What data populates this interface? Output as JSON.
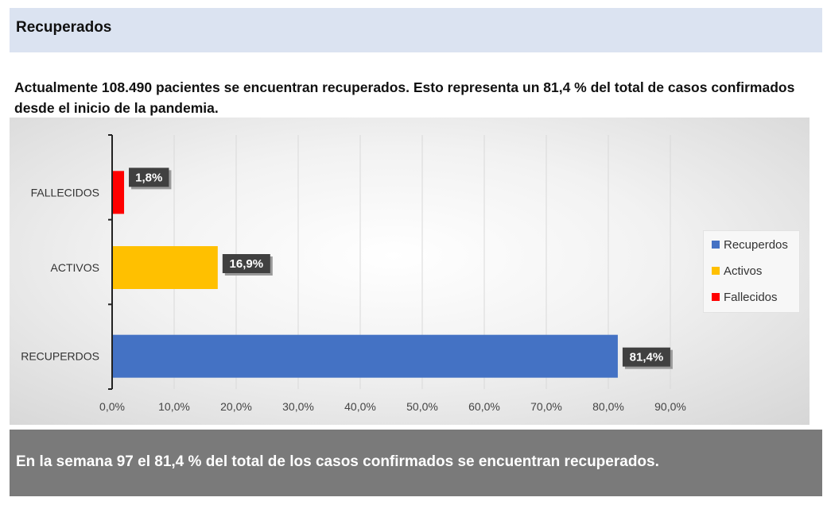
{
  "header": {
    "title": "Recuperados"
  },
  "intro": {
    "text": "Actualmente 108.490 pacientes se encuentran recuperados. Esto representa un 81,4 % del total de casos confirmados desde el inicio de la pandemia."
  },
  "footer": {
    "text": "En la semana 97  el 81,4 % del total de los casos confirmados se encuentran recuperados."
  },
  "chart_data": {
    "type": "bar",
    "orientation": "horizontal",
    "categories": [
      "FALLECIDOS",
      "ACTIVOS",
      "RECUPERDOS"
    ],
    "values": [
      1.8,
      16.9,
      81.4
    ],
    "value_labels": [
      "1,8%",
      "16,9%",
      "81,4%"
    ],
    "colors": [
      "#ff0000",
      "#ffc000",
      "#4472c4"
    ],
    "xlim": [
      0,
      90
    ],
    "x_ticks": [
      "0,0%",
      "10,0%",
      "20,0%",
      "30,0%",
      "40,0%",
      "50,0%",
      "60,0%",
      "70,0%",
      "80,0%",
      "90,0%"
    ],
    "grid": true,
    "legend_position": "right",
    "legend": [
      {
        "label": "Recuperdos",
        "color": "#4472c4"
      },
      {
        "label": "Activos",
        "color": "#ffc000"
      },
      {
        "label": "Fallecidos",
        "color": "#ff0000"
      }
    ]
  }
}
